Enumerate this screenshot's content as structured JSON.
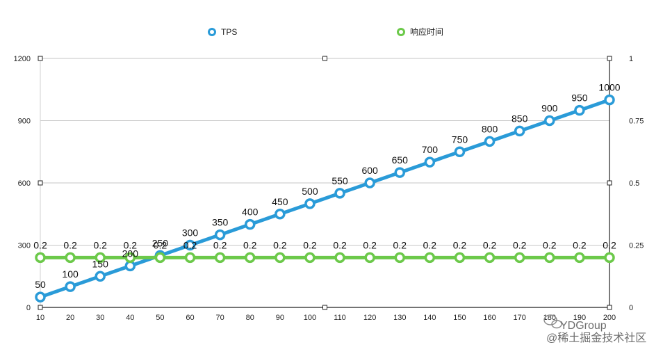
{
  "chart_data": {
    "type": "line",
    "title": "",
    "x": [
      10,
      20,
      30,
      40,
      50,
      60,
      70,
      80,
      90,
      100,
      110,
      120,
      130,
      140,
      150,
      160,
      170,
      180,
      190,
      200
    ],
    "x_tick_labels": [
      "10",
      "20",
      "30",
      "40",
      "50",
      "60",
      "70",
      "80",
      "90",
      "100",
      "110",
      "120",
      "130",
      "140",
      "150",
      "160",
      "170",
      "180",
      "190",
      "200"
    ],
    "y_left": {
      "ylim": [
        0,
        1200
      ],
      "ticks": [
        0,
        300,
        600,
        900,
        1200
      ],
      "tick_labels": [
        "0",
        "300",
        "600",
        "900",
        "1200"
      ]
    },
    "y_right": {
      "ylim": [
        0,
        1
      ],
      "ticks": [
        0,
        0.25,
        0.5,
        0.75,
        1
      ],
      "tick_labels": [
        "0",
        "0.25",
        "0.5",
        "0.75",
        "1"
      ]
    },
    "grid": true,
    "legend_position": "top-center",
    "series": [
      {
        "name": "TPS",
        "axis": "left",
        "color": "#2a9bd8",
        "values": [
          50,
          100,
          150,
          200,
          250,
          300,
          350,
          400,
          450,
          500,
          550,
          600,
          650,
          700,
          750,
          800,
          850,
          900,
          950,
          1000
        ],
        "labels": [
          "50",
          "100",
          "150",
          "200",
          "250",
          "300",
          "350",
          "400",
          "450",
          "500",
          "550",
          "600",
          "650",
          "700",
          "750",
          "800",
          "850",
          "900",
          "950",
          "1000"
        ]
      },
      {
        "name": "响应时间",
        "axis": "right",
        "color": "#6cc94a",
        "values": [
          0.2,
          0.2,
          0.2,
          0.2,
          0.2,
          0.2,
          0.2,
          0.2,
          0.2,
          0.2,
          0.2,
          0.2,
          0.2,
          0.2,
          0.2,
          0.2,
          0.2,
          0.2,
          0.2,
          0.2
        ],
        "labels": [
          "0.2",
          "0.2",
          "0.2",
          "0.2",
          "0.2",
          "0.2",
          "0.2",
          "0.2",
          "0.2",
          "0.2",
          "0.2",
          "0.2",
          "0.2",
          "0.2",
          "0.2",
          "0.2",
          "0.2",
          "0.2",
          "0.2",
          "0.2"
        ]
      }
    ]
  },
  "watermark": {
    "line1": "YDGroup",
    "line2": "@稀土掘金技术社区"
  }
}
